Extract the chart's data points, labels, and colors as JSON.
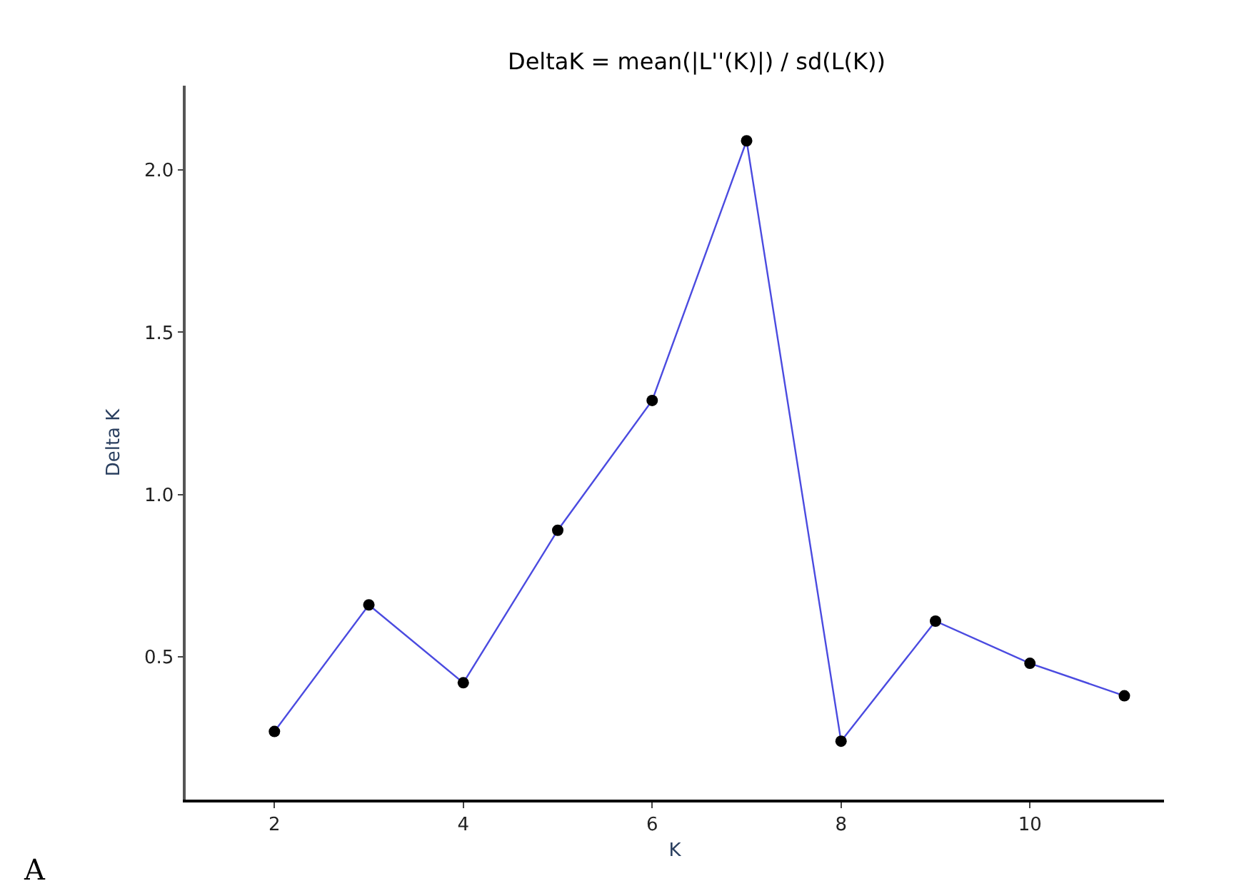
{
  "chart_data": {
    "type": "line",
    "title": "DeltaK = mean(|L''(K)|) / sd(L(K))",
    "xlabel": "K",
    "ylabel": "Delta K",
    "x": [
      2,
      3,
      4,
      5,
      6,
      7,
      8,
      9,
      10,
      11
    ],
    "series": [
      {
        "color": "#4b4be0",
        "values": [
          0.27,
          0.66,
          0.42,
          0.89,
          1.29,
          2.09,
          0.24,
          0.61,
          0.48,
          0.38
        ]
      }
    ],
    "xlim": [
      1.06,
      11.42
    ],
    "ylim": [
      0.06,
      2.26
    ],
    "xticks": [
      2,
      4,
      6,
      8,
      10
    ],
    "yticks": [
      0.5,
      {
        "value": 1,
        "label": "1.0"
      },
      1.5,
      {
        "value": 2,
        "label": "2.0"
      }
    ],
    "marker": "circle",
    "annotations": [
      "A"
    ]
  }
}
